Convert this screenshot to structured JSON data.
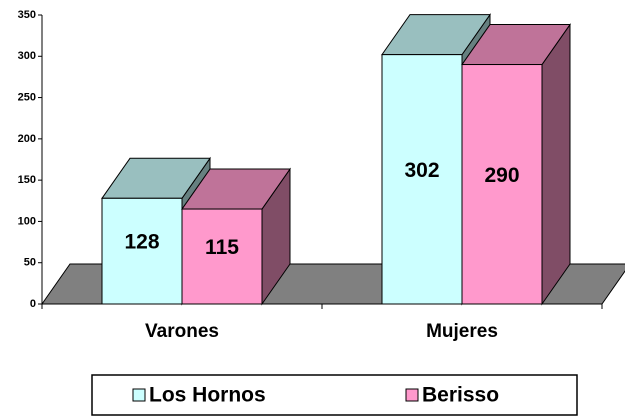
{
  "chart_data": {
    "type": "bar3d",
    "categories": [
      "Varones",
      "Mujeres"
    ],
    "series": [
      {
        "name": "Los Hornos",
        "color": "#ccffff",
        "values": [
          128,
          302
        ]
      },
      {
        "name": "Berisso",
        "color": "#ff99cc",
        "values": [
          115,
          290
        ]
      }
    ],
    "ylim": [
      0,
      350
    ],
    "yticks": [
      0,
      50,
      100,
      150,
      200,
      250,
      300,
      350
    ],
    "data_labels": true,
    "legend": "bottom"
  }
}
